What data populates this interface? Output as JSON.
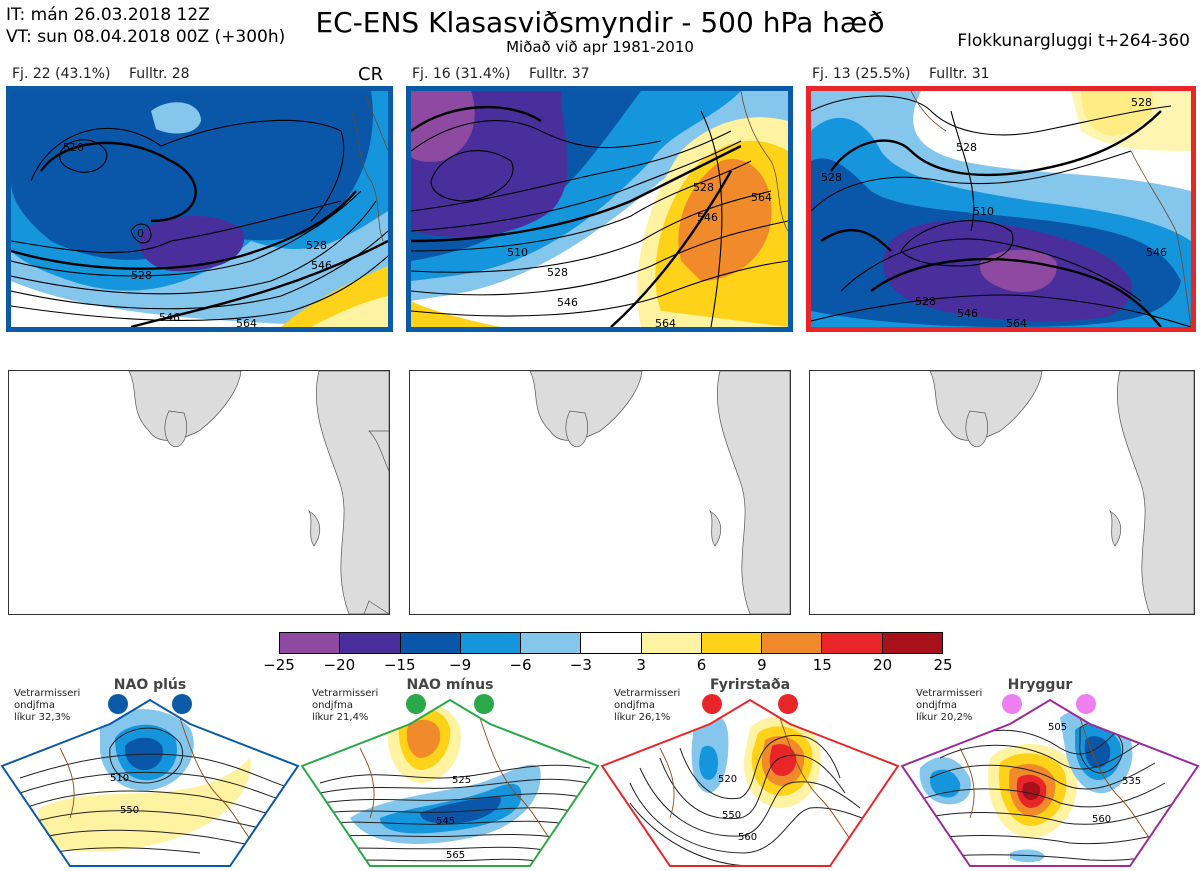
{
  "header": {
    "init_time": "IT: mán 26.03.2018 12Z",
    "valid_time": "VT: sun 08.04.2018 00Z  (+300h)",
    "title": "EC-ENS Klasasviðsmyndir - 500 hPa hæð",
    "subtitle": "Miðað við apr 1981-2010",
    "window": "Flokkunargluggi t+264-360"
  },
  "clusters": [
    {
      "count_label": "Fj. 22 (43.1%)",
      "rep_label": "Fulltr. 28",
      "tag": "CR",
      "border_color": "#0a5aa8",
      "contours": [
        "510",
        "0",
        "528",
        "546",
        "528",
        "546",
        "564"
      ]
    },
    {
      "count_label": "Fj. 16 (31.4%)",
      "rep_label": "Fulltr. 37",
      "tag": "",
      "border_color": "#0a5aa8",
      "contours": [
        "510",
        "528",
        "546",
        "564",
        "528",
        "546",
        "564"
      ]
    },
    {
      "count_label": "Fj. 13 (25.5%)",
      "rep_label": "Fulltr. 31",
      "tag": "",
      "border_color": "#e8262a",
      "contours": [
        "528",
        "528",
        "510",
        "528",
        "546",
        "564",
        "528",
        "546"
      ]
    }
  ],
  "colorbar": {
    "ticks": [
      "−25",
      "−20",
      "−15",
      "−9",
      "−6",
      "−3",
      "3",
      "6",
      "9",
      "15",
      "20",
      "25"
    ],
    "colors": [
      "#8e4aa0",
      "#4a2f9c",
      "#0a56a8",
      "#1596dc",
      "#84c6ec",
      "#ffffff",
      "#fff2a0",
      "#ffd21a",
      "#f18a2a",
      "#e8262a",
      "#a8101a"
    ]
  },
  "regimes": [
    {
      "title": "NAO plús",
      "note_1": "Vetrarmisseri",
      "note_2": "ondjfma",
      "note_3": "líkur 32,3%",
      "color": "#0a5aa8",
      "contours": [
        "510",
        "550"
      ]
    },
    {
      "title": "NAO mínus",
      "note_1": "Vetrarmisseri",
      "note_2": "ondjfma",
      "note_3": "líkur 21,4%",
      "color": "#2aa84a",
      "contours": [
        "525",
        "545",
        "565"
      ]
    },
    {
      "title": "Fyrirstaða",
      "note_1": "Vetrarmisseri",
      "note_2": "ondjfma",
      "note_3": "líkur 26,1%",
      "color": "#e8262a",
      "contours": [
        "520",
        "550",
        "560"
      ]
    },
    {
      "title": "Hryggur",
      "note_1": "Vetrarmisseri",
      "note_2": "ondjfma",
      "note_3": "líkur 20,2%",
      "color": "#9b2a9b",
      "contours": [
        "505",
        "535",
        "560"
      ]
    }
  ]
}
